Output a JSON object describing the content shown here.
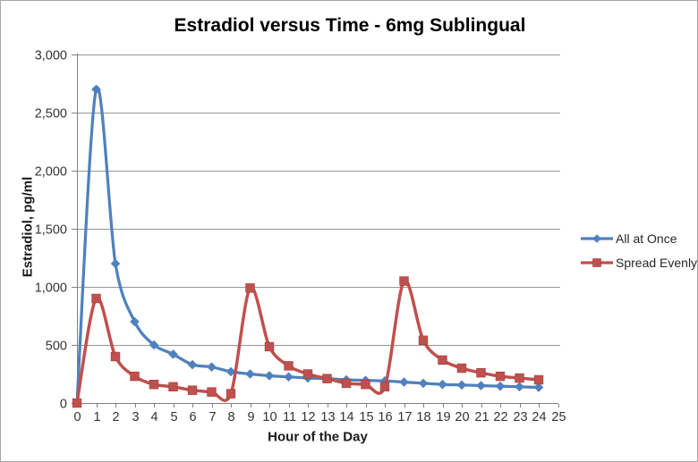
{
  "chart_data": {
    "type": "line",
    "title": "Estradiol versus Time - 6mg Sublingual",
    "xlabel": "Hour of the Day",
    "ylabel": "Estradiol, pg/ml",
    "x": [
      0,
      1,
      2,
      3,
      4,
      5,
      6,
      7,
      8,
      9,
      10,
      11,
      12,
      13,
      14,
      15,
      16,
      17,
      18,
      19,
      20,
      21,
      22,
      23,
      24
    ],
    "series": [
      {
        "name": "All at Once",
        "color": "#4F81BD",
        "marker": "diamond",
        "values": [
          0,
          2700,
          1200,
          700,
          500,
          420,
          330,
          310,
          270,
          250,
          235,
          225,
          215,
          210,
          200,
          195,
          190,
          180,
          170,
          160,
          155,
          150,
          145,
          140,
          135
        ]
      },
      {
        "name": "Spread Evenly",
        "color": "#C0504D",
        "marker": "square",
        "values": [
          0,
          900,
          400,
          230,
          160,
          140,
          110,
          95,
          80,
          990,
          485,
          320,
          250,
          210,
          170,
          160,
          140,
          1050,
          540,
          370,
          300,
          260,
          230,
          215,
          200
        ]
      }
    ],
    "xlim": [
      0,
      25
    ],
    "ylim": [
      0,
      3000
    ],
    "x_ticks": [
      0,
      1,
      2,
      3,
      4,
      5,
      6,
      7,
      8,
      9,
      10,
      11,
      12,
      13,
      14,
      15,
      16,
      17,
      18,
      19,
      20,
      21,
      22,
      23,
      24,
      25
    ],
    "y_ticks": [
      "0",
      "500",
      "1,000",
      "1,500",
      "2,000",
      "2,500",
      "3,000"
    ],
    "grid": "horizontal",
    "smoothed_lines": true,
    "legend_position": "right"
  },
  "colors": {
    "background": "#ffffff",
    "frame_border": "#a6a6a6",
    "gridline": "#969696",
    "axis": "#808080",
    "tick_text": "#333333",
    "title_text": "#000000"
  }
}
